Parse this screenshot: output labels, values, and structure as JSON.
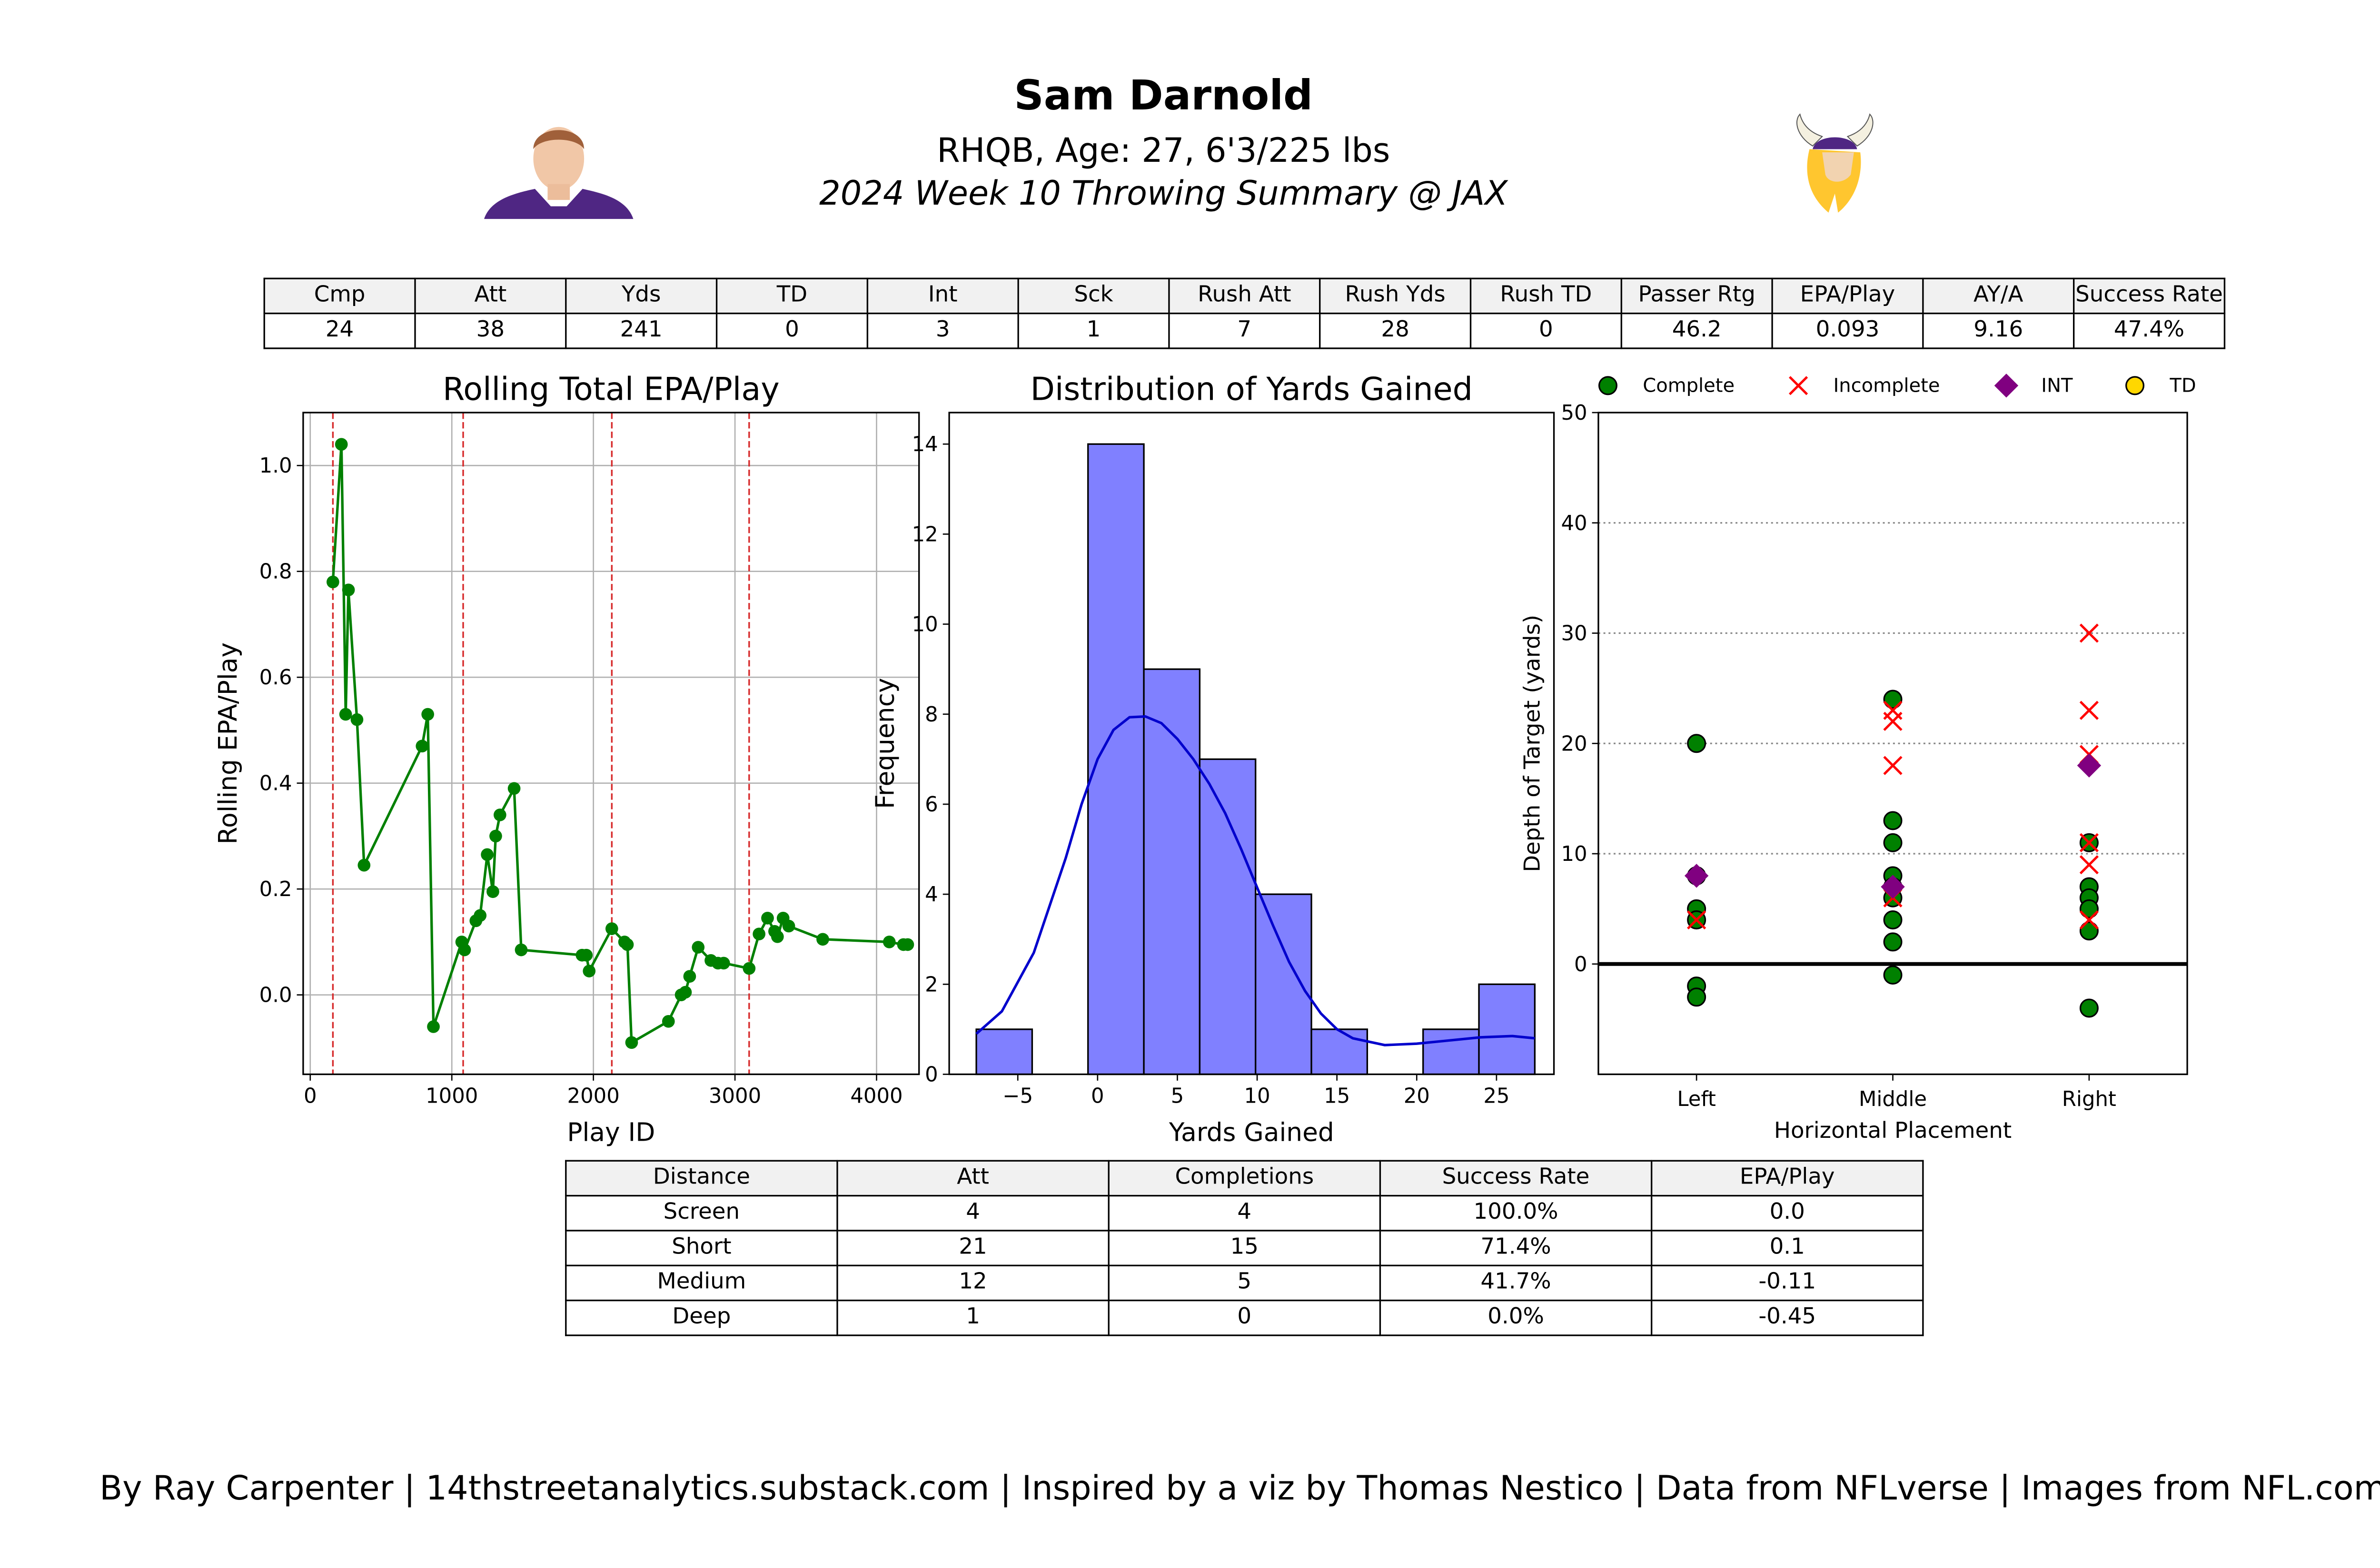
{
  "header": {
    "player_name": "Sam Darnold",
    "bio": "RHQB, Age: 27, 6'3/225 lbs",
    "subtitle": "2024 Week 10 Throwing Summary @ JAX",
    "team_color": "#4F2683",
    "team_gold": "#FFC62F"
  },
  "stats_table": {
    "headers": [
      "Cmp",
      "Att",
      "Yds",
      "TD",
      "Int",
      "Sck",
      "Rush Att",
      "Rush Yds",
      "Rush TD",
      "Passer Rtg",
      "EPA/Play",
      "AY/A",
      "Success Rate"
    ],
    "values": [
      "24",
      "38",
      "241",
      "0",
      "3",
      "1",
      "7",
      "28",
      "0",
      "46.2",
      "0.093",
      "9.16",
      "47.4%"
    ]
  },
  "distance_table": {
    "headers": [
      "Distance",
      "Att",
      "Completions",
      "Success Rate",
      "EPA/Play"
    ],
    "rows": [
      [
        "Screen",
        "4",
        "4",
        "100.0%",
        "0.0"
      ],
      [
        "Short",
        "21",
        "15",
        "71.4%",
        "0.1"
      ],
      [
        "Medium",
        "12",
        "5",
        "41.7%",
        "-0.11"
      ],
      [
        "Deep",
        "1",
        "0",
        "0.0%",
        "-0.45"
      ]
    ]
  },
  "chart_data": [
    {
      "type": "line",
      "title": "Rolling Total EPA/Play",
      "xlabel": "Play ID",
      "ylabel": "Rolling EPA/Play",
      "xlim": [
        -50,
        4300
      ],
      "ylim": [
        -0.15,
        1.1
      ],
      "xticks": [
        0,
        1000,
        2000,
        3000,
        4000
      ],
      "yticks": [
        0.0,
        0.2,
        0.4,
        0.6,
        0.8,
        1.0
      ],
      "ytick_labels": [
        "0.0",
        "0.2",
        "0.4",
        "0.6",
        "0.8",
        "1.0"
      ],
      "grid": true,
      "color": "#008000",
      "quarter_lines": [
        160,
        1080,
        2130,
        3100
      ],
      "quarter_line_color": "#d62728",
      "points": [
        [
          160,
          0.78
        ],
        [
          220,
          1.04
        ],
        [
          250,
          0.53
        ],
        [
          270,
          0.765
        ],
        [
          330,
          0.52
        ],
        [
          380,
          0.245
        ],
        [
          790,
          0.47
        ],
        [
          830,
          0.53
        ],
        [
          870,
          -0.06
        ],
        [
          1070,
          0.1
        ],
        [
          1090,
          0.085
        ],
        [
          1170,
          0.14
        ],
        [
          1200,
          0.15
        ],
        [
          1250,
          0.265
        ],
        [
          1290,
          0.195
        ],
        [
          1310,
          0.3
        ],
        [
          1340,
          0.34
        ],
        [
          1440,
          0.39
        ],
        [
          1490,
          0.085
        ],
        [
          1920,
          0.075
        ],
        [
          1950,
          0.075
        ],
        [
          1970,
          0.045
        ],
        [
          2130,
          0.125
        ],
        [
          2220,
          0.1
        ],
        [
          2240,
          0.095
        ],
        [
          2270,
          -0.09
        ],
        [
          2530,
          -0.05
        ],
        [
          2620,
          0.0
        ],
        [
          2650,
          0.005
        ],
        [
          2680,
          0.035
        ],
        [
          2740,
          0.09
        ],
        [
          2830,
          0.065
        ],
        [
          2880,
          0.06
        ],
        [
          2920,
          0.06
        ],
        [
          3100,
          0.05
        ],
        [
          3170,
          0.115
        ],
        [
          3230,
          0.145
        ],
        [
          3280,
          0.12
        ],
        [
          3300,
          0.11
        ],
        [
          3340,
          0.145
        ],
        [
          3380,
          0.13
        ],
        [
          3620,
          0.105
        ],
        [
          4090,
          0.1
        ],
        [
          4190,
          0.095
        ],
        [
          4220,
          0.095
        ]
      ]
    },
    {
      "type": "histogram",
      "title": "Distribution of Yards Gained",
      "xlabel": "Yards Gained",
      "ylabel": "Frequency",
      "xlim": [
        -9.3,
        28.6
      ],
      "ylim": [
        0,
        14.7
      ],
      "xticks": [
        -5,
        0,
        5,
        10,
        15,
        20,
        25
      ],
      "xtick_labels": [
        "−5",
        "0",
        "5",
        "10",
        "15",
        "20",
        "25"
      ],
      "yticks": [
        0,
        2,
        4,
        6,
        8,
        10,
        12,
        14
      ],
      "bar_color": "#8080ff",
      "kde_color": "#0000cc",
      "bins": [
        {
          "x0": -7.6,
          "x1": -4.1,
          "count": 1
        },
        {
          "x0": -4.1,
          "x1": -0.6,
          "count": 0
        },
        {
          "x0": -0.6,
          "x1": 2.9,
          "count": 14
        },
        {
          "x0": 2.9,
          "x1": 6.4,
          "count": 9
        },
        {
          "x0": 6.4,
          "x1": 9.9,
          "count": 7
        },
        {
          "x0": 9.9,
          "x1": 13.4,
          "count": 4
        },
        {
          "x0": 13.4,
          "x1": 16.9,
          "count": 1
        },
        {
          "x0": 16.9,
          "x1": 20.4,
          "count": 0
        },
        {
          "x0": 20.4,
          "x1": 23.9,
          "count": 1
        },
        {
          "x0": 23.9,
          "x1": 27.4,
          "count": 2
        }
      ],
      "kde": [
        [
          -7.6,
          0.9
        ],
        [
          -6.0,
          1.4
        ],
        [
          -4.0,
          2.7
        ],
        [
          -2.0,
          4.8
        ],
        [
          -1.0,
          6.0
        ],
        [
          0,
          7.0
        ],
        [
          1.0,
          7.65
        ],
        [
          2.0,
          7.93
        ],
        [
          3.0,
          7.95
        ],
        [
          4.0,
          7.8
        ],
        [
          5.0,
          7.45
        ],
        [
          6.0,
          7.0
        ],
        [
          7.0,
          6.45
        ],
        [
          8.0,
          5.8
        ],
        [
          9.0,
          5.0
        ],
        [
          10.0,
          4.15
        ],
        [
          11.0,
          3.3
        ],
        [
          12.0,
          2.5
        ],
        [
          13.0,
          1.85
        ],
        [
          14.0,
          1.35
        ],
        [
          15.0,
          1.0
        ],
        [
          16.0,
          0.8
        ],
        [
          18.0,
          0.65
        ],
        [
          20.0,
          0.68
        ],
        [
          22.0,
          0.75
        ],
        [
          24.0,
          0.82
        ],
        [
          26.0,
          0.85
        ],
        [
          27.4,
          0.8
        ]
      ]
    },
    {
      "type": "scatter",
      "xlabel": "Horizontal Placement",
      "ylabel": "Depth of Target (yards)",
      "categories": [
        "Left",
        "Middle",
        "Right"
      ],
      "xlim": [
        -0.5,
        2.5
      ],
      "ylim": [
        -10,
        50
      ],
      "yticks": [
        0,
        10,
        20,
        30,
        40,
        50
      ],
      "grid": "horizontal-dotted",
      "legend_position": "top",
      "series": [
        {
          "name": "Complete",
          "marker": "circle",
          "color": "#008000",
          "points": [
            [
              0,
              20
            ],
            [
              0,
              8
            ],
            [
              0,
              5
            ],
            [
              0,
              4
            ],
            [
              0,
              -2
            ],
            [
              0,
              -3
            ],
            [
              1,
              24
            ],
            [
              1,
              13
            ],
            [
              1,
              11
            ],
            [
              1,
              8
            ],
            [
              1,
              7
            ],
            [
              1,
              6
            ],
            [
              1,
              4
            ],
            [
              1,
              2
            ],
            [
              1,
              -1
            ],
            [
              2,
              11
            ],
            [
              2,
              7
            ],
            [
              2,
              6
            ],
            [
              2,
              5
            ],
            [
              2,
              3
            ],
            [
              2,
              -4
            ]
          ]
        },
        {
          "name": "Incomplete",
          "marker": "x",
          "color": "#ff0000",
          "points": [
            [
              0,
              4
            ],
            [
              1,
              23
            ],
            [
              1,
              22
            ],
            [
              1,
              18
            ],
            [
              1,
              6
            ],
            [
              2,
              30
            ],
            [
              2,
              23
            ],
            [
              2,
              19
            ],
            [
              2,
              11
            ],
            [
              2,
              9
            ],
            [
              2,
              4
            ]
          ]
        },
        {
          "name": "INT",
          "marker": "diamond",
          "color": "#800080",
          "points": [
            [
              0,
              8
            ],
            [
              1,
              7
            ],
            [
              2,
              18
            ]
          ]
        },
        {
          "name": "TD",
          "marker": "circle",
          "color": "#ffd700",
          "points": []
        }
      ]
    }
  ],
  "credits": "By Ray Carpenter | 14thstreetanalytics.substack.com | Inspired by a viz by Thomas Nestico | Data from NFLverse | Images from NFL.com"
}
